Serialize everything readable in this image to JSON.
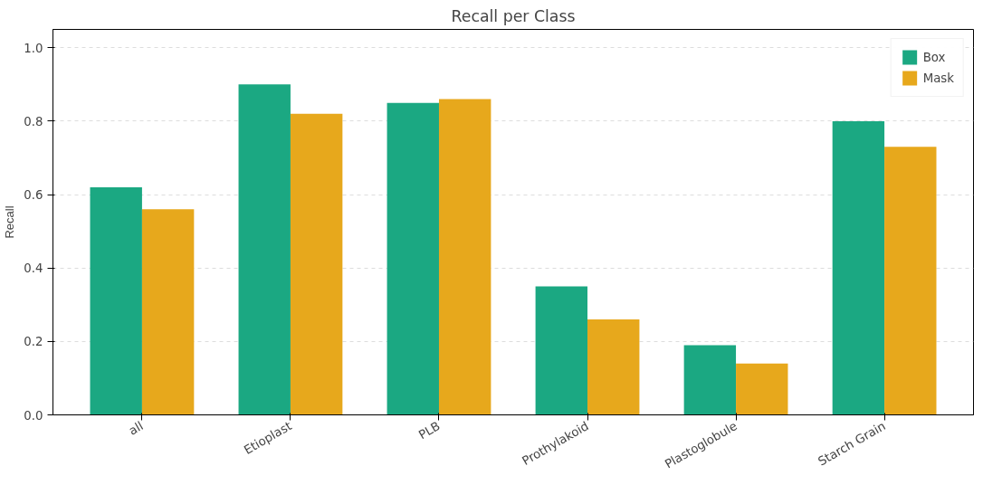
{
  "chart_data": {
    "type": "bar",
    "title": "Recall per Class",
    "ylabel": "Recall",
    "categories": [
      "all",
      "Etioplast",
      "PLB",
      "Prothylakoid",
      "Plastoglobule",
      "Starch Grain"
    ],
    "series": [
      {
        "name": "Box",
        "color": "#1ba882",
        "values": [
          0.62,
          0.9,
          0.85,
          0.35,
          0.19,
          0.8
        ]
      },
      {
        "name": "Mask",
        "color": "#e7a81c",
        "values": [
          0.56,
          0.82,
          0.86,
          0.26,
          0.14,
          0.73
        ]
      }
    ],
    "ylim": [
      0,
      1.05
    ],
    "yticks": [
      {
        "value": 0,
        "label": "0.0"
      },
      {
        "value": 0.2,
        "label": "0.2"
      },
      {
        "value": 0.4,
        "label": "0.4"
      },
      {
        "value": 0.6,
        "label": "0.6"
      },
      {
        "value": 0.8,
        "label": "0.8"
      },
      {
        "value": 1.0,
        "label": "1.0"
      }
    ],
    "grid": "y",
    "legend": "top right"
  }
}
